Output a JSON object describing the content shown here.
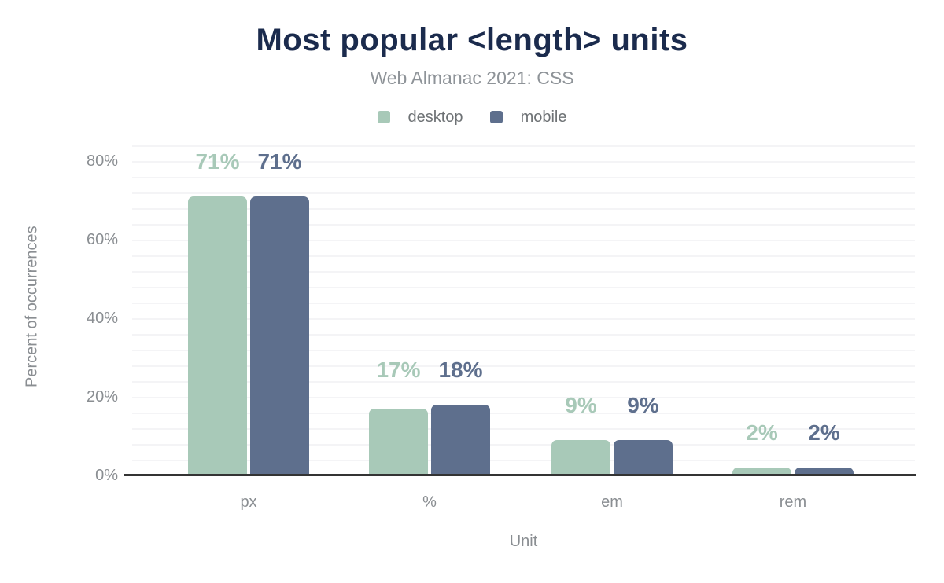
{
  "chart": {
    "accent_navy": "#1b2b4d",
    "axis_text_color": "#8a8e92",
    "gridline_color": "#f4f4f6",
    "axis_line_color": "#343434"
  },
  "chart_data": {
    "type": "bar",
    "title": "Most popular <length> units",
    "subtitle": "Web Almanac 2021: CSS",
    "xlabel": "Unit",
    "ylabel": "Percent of occurrences",
    "categories": [
      "px",
      "%",
      "em",
      "rem"
    ],
    "series": [
      {
        "name": "desktop",
        "color": "#a8c9b8",
        "values": [
          71,
          17,
          9,
          2
        ],
        "labels": [
          "71%",
          "17%",
          "9%",
          "2%"
        ]
      },
      {
        "name": "mobile",
        "color": "#5e6f8d",
        "values": [
          71,
          18,
          9,
          2
        ],
        "labels": [
          "71%",
          "18%",
          "9%",
          "2%"
        ]
      }
    ],
    "ylim": [
      0,
      86
    ],
    "yticks": [
      {
        "value": 0,
        "label": "0%"
      },
      {
        "value": 20,
        "label": "20%"
      },
      {
        "value": 40,
        "label": "40%"
      },
      {
        "value": 60,
        "label": "60%"
      },
      {
        "value": 80,
        "label": "80%"
      }
    ],
    "grid": "horizontal minor lines every 4%",
    "legend_position": "top"
  }
}
